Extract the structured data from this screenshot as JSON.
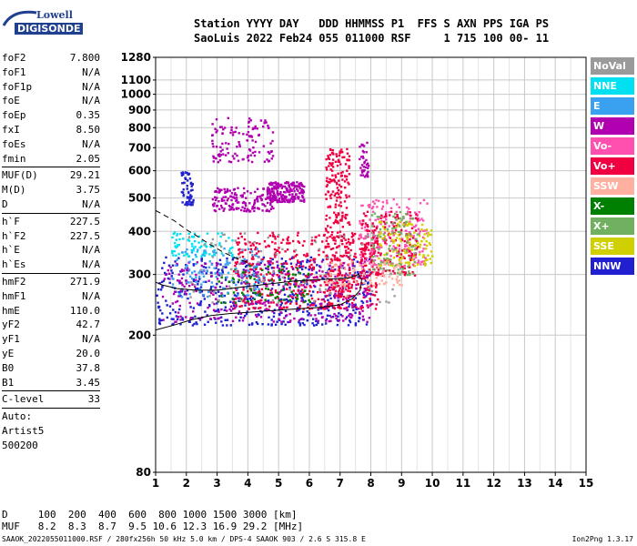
{
  "logo": {
    "line1": "Lowell",
    "line2": "DIGISONDE"
  },
  "header": {
    "line1": "Station YYYY DAY   DDD HHMMSS P1  FFS S AXN PPS IGA PS",
    "line2": "SaoLuis 2022 Feb24 055 011000 RSF     1 715 100 00- 11"
  },
  "params": [
    {
      "label": "foF2",
      "value": "7.800"
    },
    {
      "label": "foF1",
      "value": "N/A"
    },
    {
      "label": "foF1p",
      "value": "N/A"
    },
    {
      "label": "foE",
      "value": "N/A"
    },
    {
      "label": "foEp",
      "value": "0.35"
    },
    {
      "label": "fxI",
      "value": "8.50"
    },
    {
      "label": "foEs",
      "value": "N/A"
    },
    {
      "label": "fmin",
      "value": "2.05"
    },
    {
      "label": "MUF(D)",
      "value": "29.21",
      "sep": true
    },
    {
      "label": "M(D)",
      "value": "3.75"
    },
    {
      "label": "D",
      "value": "N/A"
    },
    {
      "label": "h`F",
      "value": "227.5",
      "sep": true
    },
    {
      "label": "h`F2",
      "value": "227.5"
    },
    {
      "label": "h`E",
      "value": "N/A"
    },
    {
      "label": "h`Es",
      "value": "N/A"
    },
    {
      "label": "hmF2",
      "value": "271.9",
      "sep": true
    },
    {
      "label": "hmF1",
      "value": "N/A"
    },
    {
      "label": "hmE",
      "value": "110.0"
    },
    {
      "label": "yF2",
      "value": "42.7"
    },
    {
      "label": "yF1",
      "value": "N/A"
    },
    {
      "label": "yE",
      "value": "20.0"
    },
    {
      "label": "B0",
      "value": "37.8"
    },
    {
      "label": "B1",
      "value": "3.45"
    },
    {
      "label": "C-level",
      "value": "33",
      "sep": true
    }
  ],
  "auto": {
    "line1": "Auto:",
    "line2": "Artist5",
    "line3": "500200"
  },
  "legend": [
    {
      "label": "NoVal",
      "bg": "#9a9a9a",
      "fg": "#ffffff"
    },
    {
      "label": "NNE",
      "bg": "#00e0f0",
      "fg": "#ffffff"
    },
    {
      "label": "E",
      "bg": "#3aa0f0",
      "fg": "#ffffff"
    },
    {
      "label": "W",
      "bg": "#b000b0",
      "fg": "#ffffff"
    },
    {
      "label": "Vo-",
      "bg": "#ff50b0",
      "fg": "#ffffff"
    },
    {
      "label": "Vo+",
      "bg": "#f00040",
      "fg": "#ffffff"
    },
    {
      "label": "SSW",
      "bg": "#ffb0a0",
      "fg": "#ffffff"
    },
    {
      "label": "X-",
      "bg": "#008000",
      "fg": "#ffffff"
    },
    {
      "label": "X+",
      "bg": "#70b060",
      "fg": "#ffffff"
    },
    {
      "label": "SSE",
      "bg": "#d0d000",
      "fg": "#ffffff"
    },
    {
      "label": "NNW",
      "bg": "#2020d0",
      "fg": "#ffffff"
    }
  ],
  "bottom": {
    "d_row": "D     100  200  400  600  800 1000 1500 3000 [km]",
    "muf_row": "MUF   8.2  8.3  8.7  9.5 10.6 12.3 16.9 29.2 [MHz]"
  },
  "footer": {
    "left": "SAAOK_2022055011000.RSF / 280fx256h 50 kHz 5.0 km / DPS-4 SAAOK 903 / 2.6 S 315.8 E",
    "right": "Ion2Png 1.3.17"
  },
  "chart_data": {
    "type": "scatter",
    "xlabel": "",
    "ylabel": "",
    "xlim": [
      1,
      15
    ],
    "ylim": [
      80,
      1280
    ],
    "y_scale": "log",
    "x_ticks": [
      1,
      2,
      3,
      4,
      5,
      6,
      7,
      8,
      9,
      10,
      11,
      12,
      13,
      14,
      15
    ],
    "y_ticks": [
      80,
      200,
      300,
      400,
      500,
      600,
      700,
      800,
      900,
      1000,
      1100,
      1280
    ],
    "grid": true,
    "traces": [
      {
        "name": "",
        "x": [
          1.0,
          1.6,
          2.2,
          2.8,
          3.4,
          4.0,
          4.6,
          5.2,
          5.8,
          6.4,
          7.0,
          7.4,
          7.65,
          7.7,
          7.6,
          7.3,
          6.9,
          6.3,
          5.5,
          4.6,
          3.7,
          3.0,
          2.3,
          1.7,
          1.2,
          1.0
        ],
        "y": [
          207,
          214,
          222,
          228,
          231,
          233,
          235,
          237,
          239,
          241,
          245,
          255,
          270,
          290,
          300,
          293,
          292,
          290,
          287,
          281,
          275,
          270,
          270,
          273,
          280,
          285
        ]
      },
      {
        "name": "",
        "x": [
          1.0,
          1.3,
          1.6,
          2.0,
          2.4,
          2.8,
          3.2,
          3.6,
          4.0
        ],
        "y": [
          460,
          445,
          430,
          405,
          385,
          365,
          348,
          335,
          325
        ]
      }
    ],
    "clusters": [
      {
        "color": "#2020d0",
        "x": [
          1.0,
          8.0
        ],
        "y": [
          215,
          340
        ],
        "n": 500
      },
      {
        "color": "#f00040",
        "x": [
          3.5,
          8.2
        ],
        "y": [
          240,
          400
        ],
        "n": 500
      },
      {
        "color": "#b000b0",
        "x": [
          1.2,
          8.0
        ],
        "y": [
          220,
          330
        ],
        "n": 300
      },
      {
        "color": "#f00040",
        "x": [
          6.5,
          7.3
        ],
        "y": [
          260,
          700
        ],
        "n": 260
      },
      {
        "color": "#b000b0",
        "x": [
          4.6,
          5.8
        ],
        "y": [
          490,
          560
        ],
        "n": 200
      },
      {
        "color": "#b000b0",
        "x": [
          2.8,
          4.8
        ],
        "y": [
          460,
          540
        ],
        "n": 150
      },
      {
        "color": "#b000b0",
        "x": [
          2.8,
          4.8
        ],
        "y": [
          640,
          860
        ],
        "n": 120
      },
      {
        "color": "#ff50b0",
        "x": [
          7.6,
          9.8
        ],
        "y": [
          320,
          500
        ],
        "n": 200
      },
      {
        "color": "#f00040",
        "x": [
          7.6,
          9.5
        ],
        "y": [
          300,
          460
        ],
        "n": 180
      },
      {
        "color": "#d0d000",
        "x": [
          8.2,
          10.0
        ],
        "y": [
          320,
          430
        ],
        "n": 120
      },
      {
        "color": "#70b060",
        "x": [
          8.0,
          9.5
        ],
        "y": [
          300,
          460
        ],
        "n": 90
      },
      {
        "color": "#008000",
        "x": [
          3.0,
          6.0
        ],
        "y": [
          250,
          320
        ],
        "n": 90
      },
      {
        "color": "#00e0f0",
        "x": [
          1.5,
          3.5
        ],
        "y": [
          340,
          400
        ],
        "n": 80
      },
      {
        "color": "#3aa0f0",
        "x": [
          1.5,
          4.5
        ],
        "y": [
          260,
          360
        ],
        "n": 120
      },
      {
        "color": "#ffb0a0",
        "x": [
          6.5,
          9.0
        ],
        "y": [
          280,
          330
        ],
        "n": 80
      },
      {
        "color": "#9a9a9a",
        "x": [
          2.0,
          9.0
        ],
        "y": [
          250,
          400
        ],
        "n": 90
      },
      {
        "color": "#2020d0",
        "x": [
          1.8,
          2.2
        ],
        "y": [
          480,
          600
        ],
        "n": 60
      },
      {
        "color": "#b000b0",
        "x": [
          7.6,
          7.9
        ],
        "y": [
          580,
          730
        ],
        "n": 40
      }
    ]
  }
}
